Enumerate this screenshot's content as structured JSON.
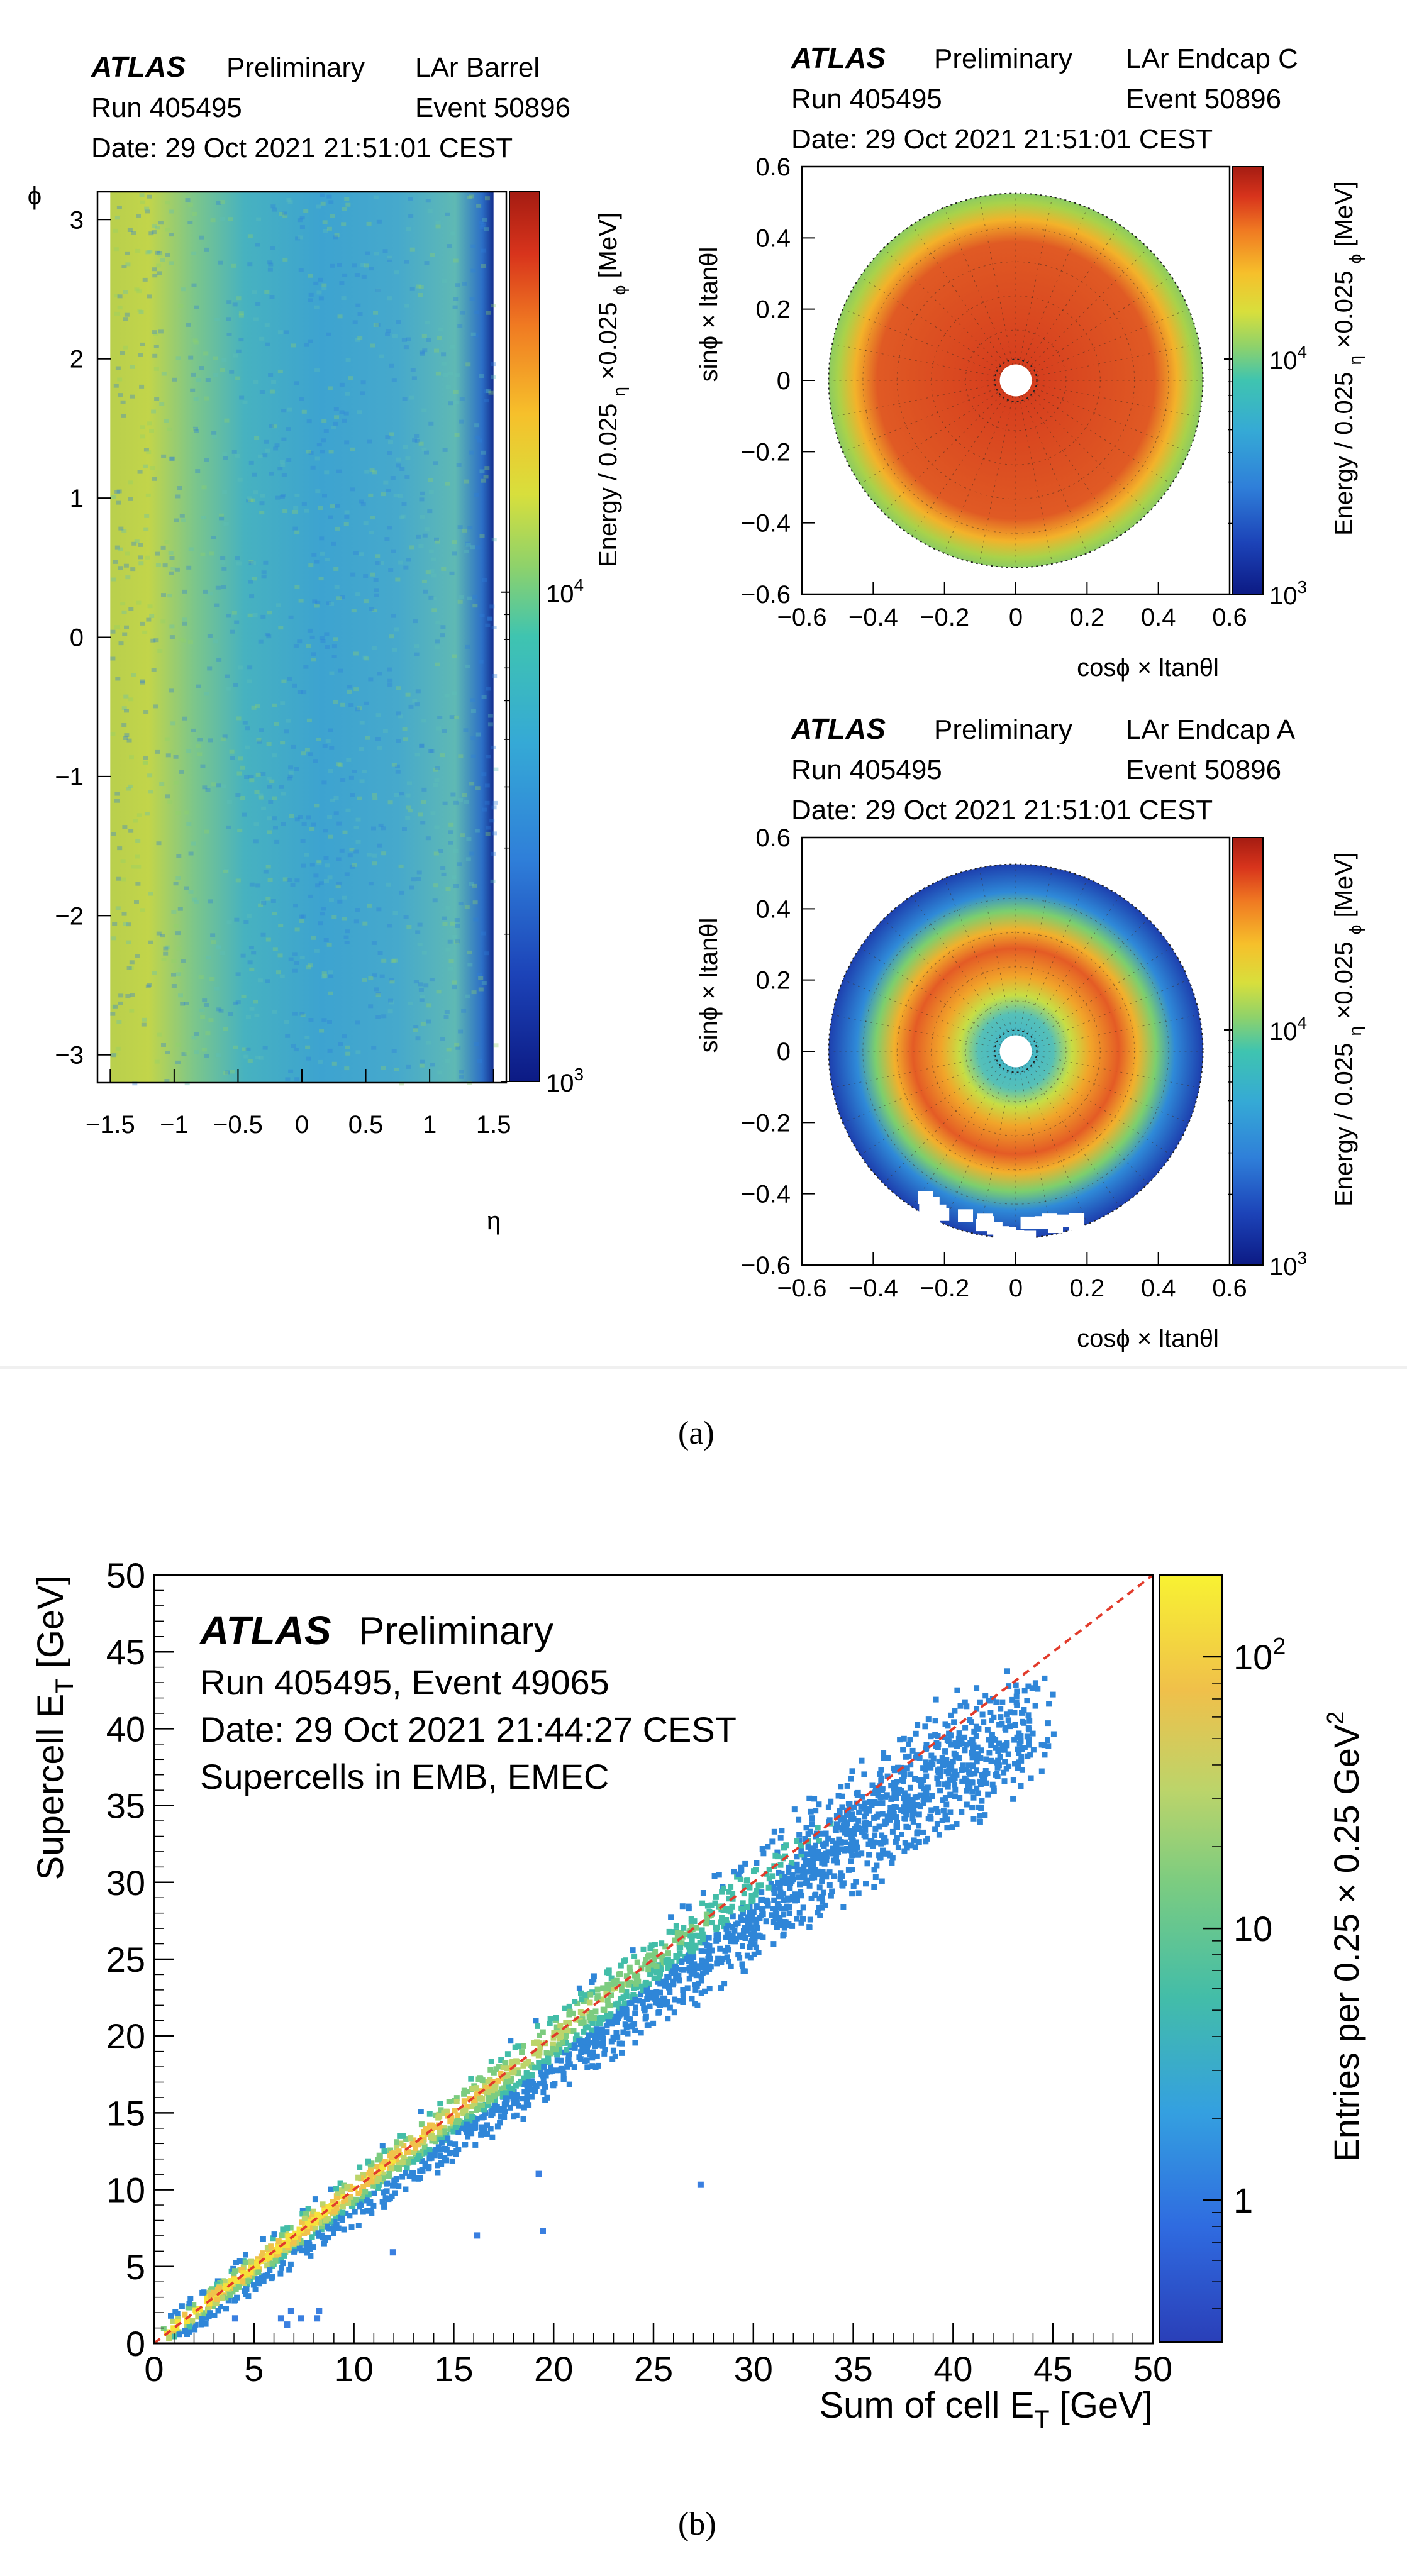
{
  "figure": {
    "panel_a_label": "(a)",
    "panel_b_label": "(b)"
  },
  "colors": {
    "viridis_like": [
      "#0c1a84",
      "#1c43b8",
      "#2f7fd9",
      "#35a9d6",
      "#3fc4b0",
      "#8fd26a",
      "#d8df3c",
      "#f6c02b",
      "#f07a22",
      "#d8341c",
      "#a51c12"
    ],
    "barrel_bg": "#3aa6c9",
    "endcap_c_inner": "#dc4a22",
    "fit_line": "#e23b2b"
  },
  "chart_data": [
    {
      "id": "barrel",
      "type": "heatmap",
      "header": {
        "atlas": "ATLAS",
        "preliminary": "Preliminary",
        "detector": "LAr Barrel",
        "run": "Run 405495",
        "event": "Event 50896",
        "date": "Date: 29 Oct 2021 21:51:01 CEST"
      },
      "xlabel": "η",
      "ylabel": "ϕ",
      "xlim": [
        -1.6,
        1.6
      ],
      "ylim": [
        -3.2,
        3.2
      ],
      "xticks": [
        "−1.5",
        "−1",
        "−0.5",
        "0",
        "0.5",
        "1",
        "1.5"
      ],
      "xtick_values": [
        -1.5,
        -1,
        -0.5,
        0,
        0.5,
        1,
        1.5
      ],
      "yticks": [
        "−3",
        "−2",
        "−1",
        "0",
        "1",
        "2",
        "3"
      ],
      "ytick_values": [
        -3,
        -2,
        -1,
        0,
        1,
        2,
        3
      ],
      "zlabel": "Energy / 0.025 ",
      "zlabel_sub1": "η",
      "zlabel_mid": " ×0.025 ",
      "zlabel_sub2": "ϕ",
      "zlabel_end": " [MeV]",
      "ztick_1e3": "10",
      "ztick_1e3_exp": "3",
      "ztick_1e4": "10",
      "ztick_1e4_exp": "4"
    },
    {
      "id": "endcap_c",
      "type": "heatmap",
      "header": {
        "atlas": "ATLAS",
        "preliminary": "Preliminary",
        "detector": "LAr Endcap C",
        "run": "Run 405495",
        "event": "Event 50896",
        "date": "Date: 29 Oct 2021 21:51:01 CEST"
      },
      "xlabel": "cosϕ × ltanθl",
      "ylabel": "sinϕ × ltanθl",
      "xlim": [
        -0.6,
        0.6
      ],
      "ylim": [
        -0.6,
        0.6
      ],
      "xticks": [
        "−0.6",
        "−0.4",
        "−0.2",
        "0",
        "0.2",
        "0.4",
        "0.6"
      ],
      "yticks": [
        "−0.6",
        "−0.4",
        "−0.2",
        "0",
        "0.2",
        "0.4",
        "0.6"
      ],
      "tick_values": [
        -0.6,
        -0.4,
        -0.2,
        0,
        0.2,
        0.4,
        0.6
      ],
      "zlabel": "Energy / 0.025 ",
      "zlabel_sub1": "η",
      "zlabel_mid": " ×0.025 ",
      "zlabel_sub2": "ϕ",
      "zlabel_end": " [MeV]",
      "ztick_1e3": "10",
      "ztick_1e3_exp": "3",
      "ztick_1e4": "10",
      "ztick_1e4_exp": "4"
    },
    {
      "id": "endcap_a",
      "type": "heatmap",
      "header": {
        "atlas": "ATLAS",
        "preliminary": "Preliminary",
        "detector": "LAr Endcap A",
        "run": "Run 405495",
        "event": "Event 50896",
        "date": "Date: 29 Oct 2021 21:51:01 CEST"
      },
      "xlabel": "cosϕ × ltanθl",
      "ylabel": "sinϕ × ltanθl",
      "xlim": [
        -0.6,
        0.6
      ],
      "ylim": [
        -0.6,
        0.6
      ],
      "xticks": [
        "−0.6",
        "−0.4",
        "−0.2",
        "0",
        "0.2",
        "0.4",
        "0.6"
      ],
      "yticks": [
        "−0.6",
        "−0.4",
        "−0.2",
        "0",
        "0.2",
        "0.4",
        "0.6"
      ],
      "tick_values": [
        -0.6,
        -0.4,
        -0.2,
        0,
        0.2,
        0.4,
        0.6
      ],
      "zlabel": "Energy / 0.025 ",
      "zlabel_sub1": "η",
      "zlabel_mid": " ×0.025 ",
      "zlabel_sub2": "ϕ",
      "zlabel_end": " [MeV]",
      "ztick_1e3": "10",
      "ztick_1e3_exp": "3",
      "ztick_1e4": "10",
      "ztick_1e4_exp": "4"
    },
    {
      "id": "supercell",
      "type": "heatmap",
      "header": {
        "atlas": "ATLAS",
        "preliminary": "Preliminary",
        "line1": "Run 405495, Event 49065",
        "line2": "Date: 29 Oct 2021 21:44:27 CEST",
        "line3": "Supercells in EMB, EMEC"
      },
      "xlabel": "Sum of cell E",
      "xlabel_sub": "T",
      "xlabel_end": " [GeV]",
      "ylabel": "Supercell E",
      "ylabel_sub": "T",
      "ylabel_end": " [GeV]",
      "xlim": [
        0,
        50
      ],
      "ylim": [
        0,
        50
      ],
      "ticks": [
        "0",
        "5",
        "10",
        "15",
        "20",
        "25",
        "30",
        "35",
        "40",
        "45",
        "50"
      ],
      "tick_values": [
        0,
        5,
        10,
        15,
        20,
        25,
        30,
        35,
        40,
        45,
        50
      ],
      "zlabel": "Entries per 0.25 × 0.25 GeV",
      "zlabel_exp": "2",
      "zticks": [
        {
          "label": "1",
          "exp": "",
          "value": 1
        },
        {
          "label": "10",
          "exp": "",
          "value": 10
        },
        {
          "label": "10",
          "exp": "2",
          "value": 100
        }
      ],
      "zlim": [
        0.3,
        200
      ],
      "fit_line": {
        "x": [
          0,
          50
        ],
        "y": [
          0,
          50
        ]
      },
      "outliers": [
        {
          "x": 27.2,
          "y": 10.2
        },
        {
          "x": 19.1,
          "y": 10.9
        },
        {
          "x": 16.0,
          "y": 6.9
        },
        {
          "x": 19.3,
          "y": 7.2
        },
        {
          "x": 11.8,
          "y": 5.8
        },
        {
          "x": 3.9,
          "y": 1.5
        },
        {
          "x": 6.2,
          "y": 1.5
        },
        {
          "x": 6.7,
          "y": 2.0
        },
        {
          "x": 7.2,
          "y": 1.5
        },
        {
          "x": 8.0,
          "y": 1.5
        },
        {
          "x": 8.1,
          "y": 2.0
        },
        {
          "x": 6.5,
          "y": 1.1
        }
      ]
    }
  ]
}
